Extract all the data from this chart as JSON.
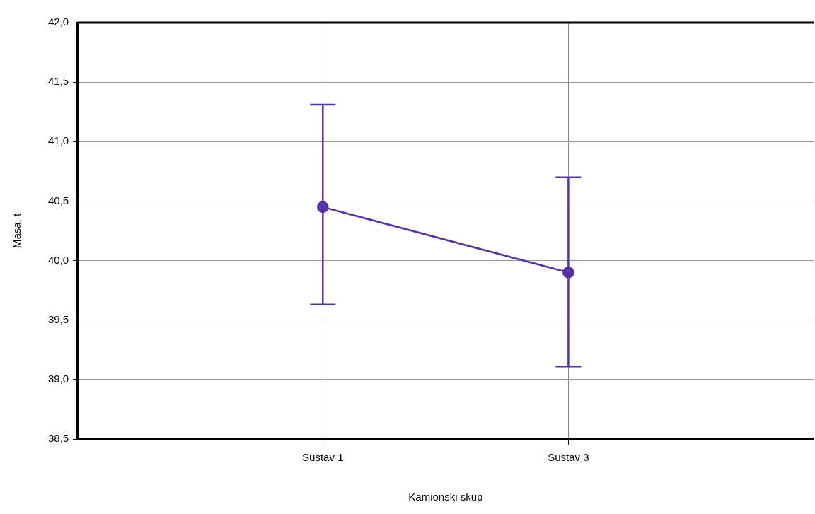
{
  "chart_data": {
    "type": "line",
    "xlabel": "Kamionski skup",
    "ylabel": "Masa, t",
    "categories": [
      "Sustav 1",
      "Sustav 3"
    ],
    "series": [
      {
        "color": "#5530a8",
        "values": [
          40.45,
          39.9
        ],
        "errors": [
          [
            39.63,
            41.31
          ],
          [
            39.11,
            40.7
          ]
        ]
      }
    ],
    "ylim": [
      38.5,
      42
    ],
    "yticks": [
      {
        "value": 38.5,
        "label": "38,5"
      },
      {
        "value": 39,
        "label": "39,0"
      },
      {
        "value": 39.5,
        "label": "39,5"
      },
      {
        "value": 40,
        "label": "40,0"
      },
      {
        "value": 40.5,
        "label": "40,5"
      },
      {
        "value": 41,
        "label": "41,0"
      },
      {
        "value": 41.5,
        "label": "41,5"
      },
      {
        "value": 42,
        "label": "42,0"
      }
    ],
    "grid": true,
    "legend": false,
    "marker": "circle",
    "line_style": "solid"
  }
}
